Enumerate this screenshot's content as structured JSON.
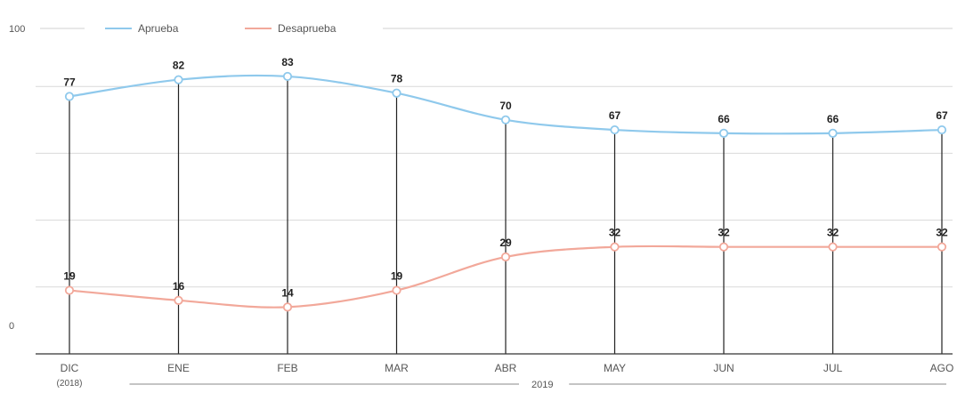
{
  "chart_data": {
    "type": "line",
    "title": "",
    "xlabel": "",
    "ylabel": "",
    "ylim": [
      0,
      100
    ],
    "y_tick_labels": [
      "100",
      "0"
    ],
    "grid": true,
    "legend_position": "top-left",
    "categories": [
      "DIC",
      "ENE",
      "FEB",
      "MAR",
      "ABR",
      "MAY",
      "JUN",
      "JUL",
      "AGO"
    ],
    "category_sublabels": {
      "DIC": "2018"
    },
    "year_span_label": "2019",
    "series": [
      {
        "name": "Aprueba",
        "color": "#8fc9ec",
        "values": [
          77,
          82,
          83,
          78,
          70,
          67,
          66,
          66,
          67
        ],
        "labels": [
          "77",
          "82",
          "83",
          "78",
          "70",
          "67",
          "66",
          "66",
          "67"
        ]
      },
      {
        "name": "Desaprueba",
        "color": "#f2a89a",
        "values": [
          19,
          16,
          14,
          19,
          29,
          32,
          32,
          32,
          32
        ],
        "labels": [
          "19",
          "16",
          "14",
          "19",
          "29",
          "32",
          "32",
          "32",
          "32"
        ]
      }
    ]
  }
}
